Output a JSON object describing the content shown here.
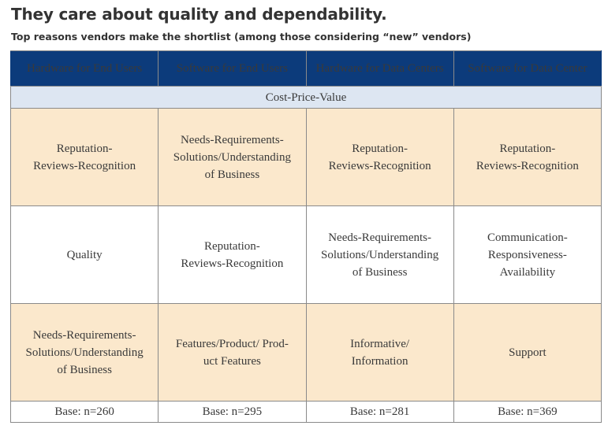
{
  "title": "They care about quality and dependability.",
  "subtitle": "Top reasons vendors make the shortlist (among those considering “new” vendors)",
  "chart_data": {
    "type": "table",
    "columns": [
      "Hardware for End Users",
      "Software for End Users",
      "Hardware for Data Centers",
      "Software for Data Center"
    ],
    "category_row": "Cost-Price-Value",
    "rows": [
      [
        "Reputation-\nReviews-Recognition",
        "Needs-Requirements-\nSolutions/Understanding\nof Business",
        "Reputation-\nReviews-Recognition",
        "Reputation-\nReviews-Recognition"
      ],
      [
        "Quality",
        "Reputation-\nReviews-Recognition",
        "Needs-Requirements-\nSolutions/Understanding\nof Business",
        "Communication-\nResponsiveness-\nAvailability"
      ],
      [
        "Needs-Requirements-\nSolutions/Understanding\nof Business",
        "Features/Product/ Prod-\nuct Features",
        "Informative/\nInformation",
        "Support"
      ]
    ],
    "bases": [
      "Base: n=260",
      "Base: n=295",
      "Base: n=281",
      "Base: n=369"
    ]
  },
  "colors": {
    "header_bg": "#0c3b7b",
    "category_bg": "#dde6f2",
    "shade_bg": "#fbe8cc",
    "base_text": "#2a5aa8"
  }
}
